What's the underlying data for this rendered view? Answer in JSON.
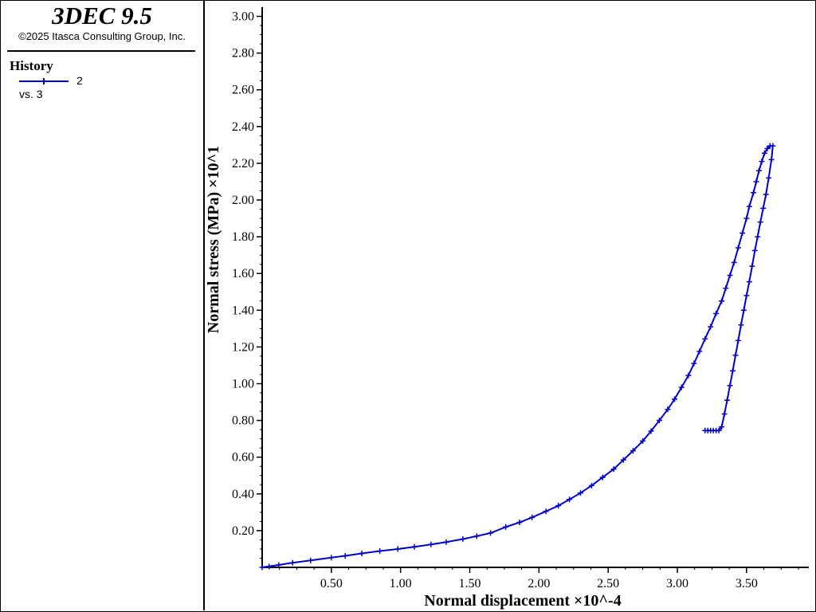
{
  "app": {
    "title": "3DEC 9.5",
    "copyright": "©2025 Itasca Consulting Group, Inc."
  },
  "legend": {
    "heading": "History",
    "series_id": "2",
    "series_vs": "vs. 3",
    "line_color": "#0000cc"
  },
  "chart_data": {
    "type": "line",
    "xlabel": "Normal displacement ×10^-4",
    "ylabel": "Normal stress (MPa) ×10^1",
    "xlim": [
      0.0,
      3.95
    ],
    "ylim": [
      0.0,
      3.05
    ],
    "x_ticks": [
      "0.50",
      "1.00",
      "1.50",
      "2.00",
      "2.50",
      "3.00",
      "3.50"
    ],
    "y_ticks": [
      "0.20",
      "0.40",
      "0.60",
      "0.80",
      "1.00",
      "1.20",
      "1.40",
      "1.60",
      "1.80",
      "2.00",
      "2.20",
      "2.40",
      "2.60",
      "2.80",
      "3.00"
    ],
    "grid": false,
    "series": [
      {
        "color": "#0000cc",
        "marker": "plus",
        "x": [
          0.0,
          0.05,
          0.12,
          0.22,
          0.35,
          0.5,
          0.6,
          0.72,
          0.85,
          0.98,
          1.1,
          1.22,
          1.33,
          1.45,
          1.55,
          1.65,
          1.76,
          1.86,
          1.95,
          2.05,
          2.14,
          2.22,
          2.3,
          2.38,
          2.46,
          2.54,
          2.61,
          2.68,
          2.75,
          2.81,
          2.87,
          2.93,
          2.98,
          3.03,
          3.08,
          3.12,
          3.16,
          3.2,
          3.24,
          3.28,
          3.32,
          3.35,
          3.38,
          3.41,
          3.44,
          3.47,
          3.5,
          3.52,
          3.55,
          3.57,
          3.59,
          3.61,
          3.63,
          3.65,
          3.67,
          3.69,
          3.68,
          3.66,
          3.64,
          3.62,
          3.6,
          3.58,
          3.56,
          3.54,
          3.52,
          3.5,
          3.48,
          3.46,
          3.44,
          3.42,
          3.4,
          3.38,
          3.36,
          3.34,
          3.32,
          3.3,
          3.28,
          3.26,
          3.24,
          3.22,
          3.2
        ],
        "y": [
          0.0,
          0.005,
          0.013,
          0.025,
          0.038,
          0.053,
          0.063,
          0.076,
          0.089,
          0.1,
          0.112,
          0.125,
          0.138,
          0.154,
          0.17,
          0.187,
          0.22,
          0.245,
          0.272,
          0.305,
          0.336,
          0.37,
          0.405,
          0.445,
          0.49,
          0.535,
          0.585,
          0.635,
          0.688,
          0.742,
          0.8,
          0.86,
          0.916,
          0.98,
          1.045,
          1.11,
          1.176,
          1.244,
          1.31,
          1.382,
          1.45,
          1.52,
          1.59,
          1.66,
          1.74,
          1.82,
          1.9,
          1.965,
          2.04,
          2.1,
          2.16,
          2.21,
          2.255,
          2.28,
          2.295,
          2.295,
          2.22,
          2.12,
          2.03,
          1.955,
          1.88,
          1.8,
          1.725,
          1.64,
          1.555,
          1.48,
          1.4,
          1.32,
          1.235,
          1.155,
          1.07,
          0.99,
          0.91,
          0.835,
          0.765,
          0.745,
          0.745,
          0.745,
          0.745,
          0.745,
          0.745
        ]
      }
    ]
  }
}
